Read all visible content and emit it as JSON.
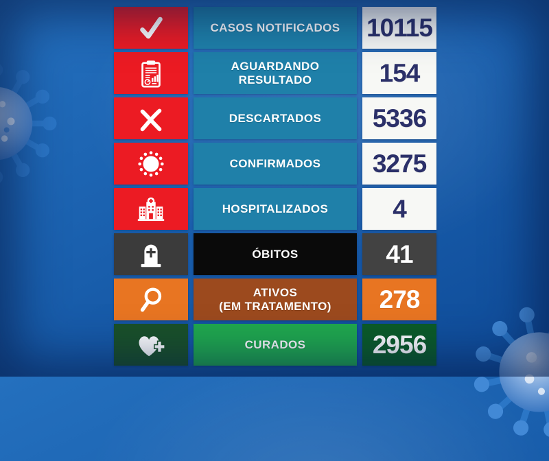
{
  "app": {
    "title": "painel-covid-estatisticas",
    "language": "pt-BR"
  },
  "background": {
    "base_color": "#1a60ae",
    "highlight_color": "#2470be",
    "edge_color": "#0e4a97",
    "vignette_color": "#061c4a",
    "illustrations": [
      {
        "name": "coronavirus-illustration-left",
        "position": "left-middle"
      },
      {
        "name": "coronavirus-illustration-bottom-right",
        "position": "bottom-right"
      }
    ]
  },
  "table": {
    "columns": [
      "icon",
      "label",
      "value"
    ],
    "rows": [
      {
        "id": "casos-notificados",
        "icon": "check-icon",
        "label_lines": [
          "CASOS NOTIFICADOS"
        ],
        "value": "10115",
        "colors": {
          "icon_bg": "#ec1b23",
          "label_bg": "#1f80a9",
          "label_color": "#ffffff",
          "value_bg": "#f7f8f5",
          "value_color": "#2b3069"
        }
      },
      {
        "id": "aguardando-resultado",
        "icon": "clipboard-report-icon",
        "label_lines": [
          "AGUARDANDO",
          "RESULTADO"
        ],
        "value": "154",
        "colors": {
          "icon_bg": "#ec1b23",
          "label_bg": "#1f80a9",
          "label_color": "#ffffff",
          "value_bg": "#f7f8f5",
          "value_color": "#2b3069"
        }
      },
      {
        "id": "descartados",
        "icon": "x-mark-icon",
        "label_lines": [
          "DESCARTADOS"
        ],
        "value": "5336",
        "colors": {
          "icon_bg": "#ec1b23",
          "label_bg": "#1f80a9",
          "label_color": "#ffffff",
          "value_bg": "#f7f8f5",
          "value_color": "#2b3069"
        }
      },
      {
        "id": "confirmados",
        "icon": "virus-icon",
        "label_lines": [
          "CONFIRMADOS"
        ],
        "value": "3275",
        "colors": {
          "icon_bg": "#ec1b23",
          "label_bg": "#1f80a9",
          "label_color": "#ffffff",
          "value_bg": "#f7f8f5",
          "value_color": "#2b3069"
        }
      },
      {
        "id": "hospitalizados",
        "icon": "hospital-icon",
        "label_lines": [
          "HOSPITALIZADOS"
        ],
        "value": "4",
        "colors": {
          "icon_bg": "#ec1b23",
          "label_bg": "#1f80a9",
          "label_color": "#ffffff",
          "value_bg": "#f7f8f5",
          "value_color": "#2b3069"
        }
      },
      {
        "id": "obitos",
        "icon": "tombstone-icon",
        "label_lines": [
          "ÓBITOS"
        ],
        "value": "41",
        "colors": {
          "icon_bg": "#3b3b3b",
          "label_bg": "#0a0a0a",
          "label_color": "#ffffff",
          "value_bg": "#424242",
          "value_color": "#ffffff"
        }
      },
      {
        "id": "ativos-em-tratamento",
        "icon": "magnifier-icon",
        "label_lines": [
          "ATIVOS",
          "(EM TRATAMENTO)"
        ],
        "value": "278",
        "colors": {
          "icon_bg": "#e87522",
          "label_bg": "#9c4a1e",
          "label_color": "#ffffff",
          "value_bg": "#e87522",
          "value_color": "#ffffff"
        }
      },
      {
        "id": "curados",
        "icon": "heart-plus-icon",
        "label_lines": [
          "CURADOS"
        ],
        "value": "2956",
        "colors": {
          "icon_bg": "#1a5128",
          "label_bg": "#20a94d",
          "label_color": "#ffffff",
          "value_bg": "#0b5c27",
          "value_color": "#ffffff"
        }
      }
    ]
  }
}
